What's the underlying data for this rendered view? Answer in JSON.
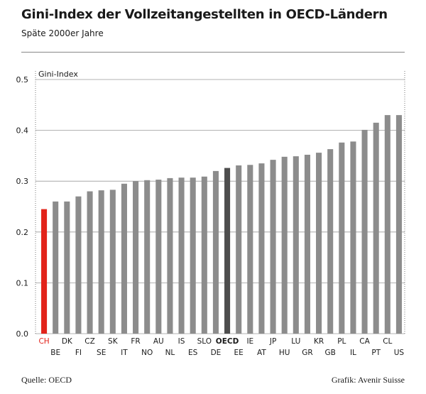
{
  "header": {
    "title": "Gini-Index der Vollzeitangestellten in OECD-Ländern",
    "subtitle": "Späte 2000er Jahre"
  },
  "footer": {
    "source": "Quelle: OECD",
    "credit": "Grafik: Avenir Suisse"
  },
  "colors": {
    "bar": "#8c8c8c",
    "highlight": "#e2231a",
    "oecd": "#4d4d4d",
    "grid": "#9a9a9a"
  },
  "chart_data": {
    "type": "bar",
    "ylabel": "Gini-Index",
    "ylim": [
      0,
      0.5
    ],
    "yticks": [
      "0.0",
      "0.1",
      "0.2",
      "0.3",
      "0.4",
      "0.5"
    ],
    "grid": true,
    "highlight": "CH",
    "reference": "OECD",
    "categories": [
      "CH",
      "BE",
      "DK",
      "FI",
      "CZ",
      "SE",
      "SK",
      "IT",
      "FR",
      "NO",
      "AU",
      "NL",
      "IS",
      "ES",
      "SLO",
      "DE",
      "OECD",
      "EE",
      "IE",
      "AT",
      "JP",
      "HU",
      "LU",
      "GR",
      "KR",
      "GB",
      "PL",
      "IL",
      "CA",
      "PT",
      "CL",
      "US"
    ],
    "values": [
      0.245,
      0.26,
      0.26,
      0.27,
      0.28,
      0.282,
      0.283,
      0.295,
      0.3,
      0.302,
      0.303,
      0.306,
      0.307,
      0.307,
      0.309,
      0.32,
      0.326,
      0.331,
      0.332,
      0.335,
      0.342,
      0.348,
      0.349,
      0.352,
      0.356,
      0.363,
      0.376,
      0.378,
      0.401,
      0.415,
      0.43,
      0.43
    ]
  }
}
